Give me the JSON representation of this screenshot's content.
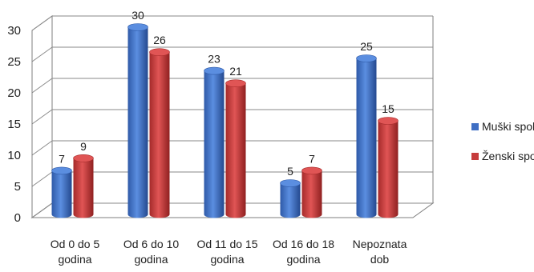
{
  "chart_data": {
    "type": "bar",
    "title": "",
    "xlabel": "",
    "ylabel": "",
    "categories": [
      [
        "Od 0 do 5",
        "godina"
      ],
      [
        "Od 6 do 10",
        "godina"
      ],
      [
        "Od 11 do 15",
        "godina"
      ],
      [
        "Od 16 do 18",
        "godina"
      ],
      [
        "Nepoznata",
        "dob"
      ]
    ],
    "series": [
      {
        "name": "Muški spol",
        "color": "#3f6fc4",
        "values": [
          7,
          30,
          23,
          5,
          25
        ]
      },
      {
        "name": "Ženski spol",
        "color": "#c63c3c",
        "values": [
          9,
          26,
          21,
          7,
          15
        ]
      }
    ],
    "ylim": [
      0,
      30
    ],
    "yticks": [
      0,
      5,
      10,
      15,
      20,
      25,
      30
    ],
    "grid": true,
    "legend": "right"
  }
}
